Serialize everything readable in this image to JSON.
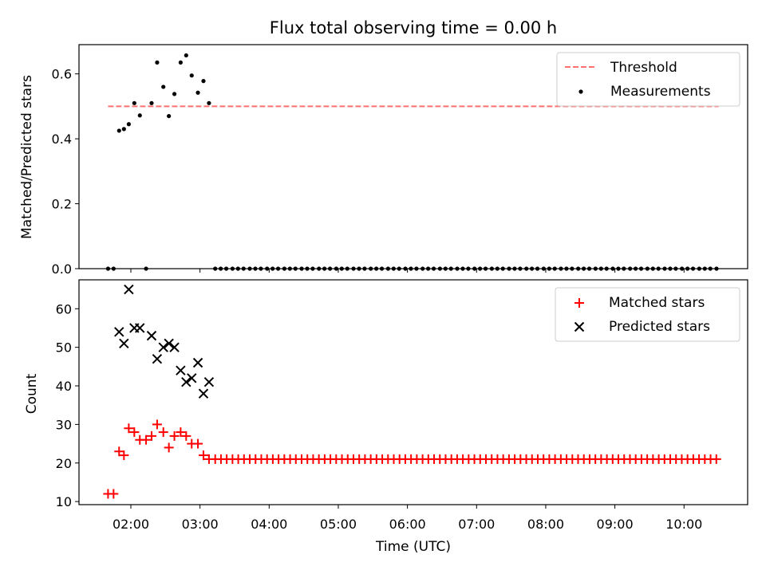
{
  "title": "Flux total observing time = 0.00 h",
  "chart_data": [
    {
      "type": "scatter",
      "ylabel": "Matched/Predicted stars",
      "xlim": [
        1.25,
        10.92
      ],
      "ylim": [
        0.0,
        0.69
      ],
      "yticks": [
        0.0,
        0.2,
        0.4,
        0.6
      ],
      "ytick_labels": [
        "0.0",
        "0.2",
        "0.4",
        "0.6"
      ],
      "xticks": [
        2,
        3,
        4,
        5,
        6,
        7,
        8,
        9,
        10
      ],
      "grid": false,
      "legend_position": "top-right",
      "threshold": {
        "name": "Threshold",
        "value": 0.5,
        "x": [
          1.67,
          10.5
        ],
        "color": "#ff7070",
        "style": "dashed"
      },
      "measurements": {
        "name": "Measurements",
        "color": "#000000",
        "x": [
          1.83,
          1.9,
          1.97,
          2.05,
          2.13,
          2.3,
          2.38,
          2.47,
          2.55,
          2.63,
          2.72,
          2.8,
          2.88,
          2.97,
          3.05,
          3.13
        ],
        "y": [
          0.425,
          0.43,
          0.445,
          0.51,
          0.472,
          0.51,
          0.635,
          0.56,
          0.47,
          0.538,
          0.635,
          0.657,
          0.595,
          0.542,
          0.578,
          0.51
        ]
      },
      "zero_points_x": [
        1.67,
        1.75,
        2.22,
        3.22,
        3.3,
        3.38,
        3.47,
        3.55,
        3.63,
        3.72,
        3.8,
        3.88,
        3.97,
        4.05,
        4.13,
        4.22,
        4.3,
        4.38,
        4.47,
        4.55,
        4.63,
        4.72,
        4.8,
        4.88,
        4.97,
        5.05,
        5.13,
        5.22,
        5.3,
        5.38,
        5.47,
        5.55,
        5.63,
        5.72,
        5.8,
        5.88,
        5.97,
        6.05,
        6.13,
        6.22,
        6.3,
        6.38,
        6.47,
        6.55,
        6.63,
        6.72,
        6.8,
        6.88,
        6.97,
        7.05,
        7.13,
        7.22,
        7.3,
        7.38,
        7.47,
        7.55,
        7.63,
        7.72,
        7.8,
        7.88,
        7.97,
        8.05,
        8.13,
        8.22,
        8.3,
        8.38,
        8.47,
        8.55,
        8.63,
        8.72,
        8.8,
        8.88,
        8.97,
        9.05,
        9.13,
        9.22,
        9.3,
        9.38,
        9.47,
        9.55,
        9.63,
        9.72,
        9.8,
        9.88,
        9.97,
        10.05,
        10.13,
        10.22,
        10.3,
        10.38,
        10.47
      ]
    },
    {
      "type": "scatter",
      "xlabel": "Time (UTC)",
      "ylabel": "Count",
      "xlim": [
        1.25,
        10.92
      ],
      "ylim": [
        9.2,
        67.5
      ],
      "yticks": [
        10,
        20,
        30,
        40,
        50,
        60
      ],
      "ytick_labels": [
        "10",
        "20",
        "30",
        "40",
        "50",
        "60"
      ],
      "xticks": [
        2,
        3,
        4,
        5,
        6,
        7,
        8,
        9,
        10
      ],
      "xtick_labels": [
        "02:00",
        "03:00",
        "04:00",
        "05:00",
        "06:00",
        "07:00",
        "08:00",
        "09:00",
        "10:00"
      ],
      "grid": false,
      "legend_position": "top-right",
      "series": [
        {
          "name": "Matched stars",
          "marker": "plus",
          "color": "#ff0000",
          "x": [
            1.67,
            1.75,
            1.83,
            1.9,
            1.97,
            2.05,
            2.13,
            2.22,
            2.3,
            2.38,
            2.47,
            2.55,
            2.63,
            2.72,
            2.8,
            2.88,
            2.97,
            3.05,
            3.13
          ],
          "y": [
            12,
            12,
            23,
            22,
            29,
            28,
            26,
            26,
            27,
            30,
            28,
            24,
            27,
            28,
            27,
            25,
            25,
            22,
            21
          ],
          "tail": {
            "x_start": 3.22,
            "x_step": 0.0833,
            "count": 88,
            "y": 21
          }
        },
        {
          "name": "Predicted stars",
          "marker": "x",
          "color": "#000000",
          "x": [
            1.83,
            1.9,
            1.97,
            2.05,
            2.13,
            2.3,
            2.38,
            2.47,
            2.55,
            2.63,
            2.72,
            2.8,
            2.88,
            2.97,
            3.05,
            3.13
          ],
          "y": [
            54,
            51,
            65,
            55,
            55,
            53,
            47,
            50,
            51,
            50,
            44,
            41,
            42,
            46,
            38,
            41
          ]
        }
      ]
    }
  ]
}
